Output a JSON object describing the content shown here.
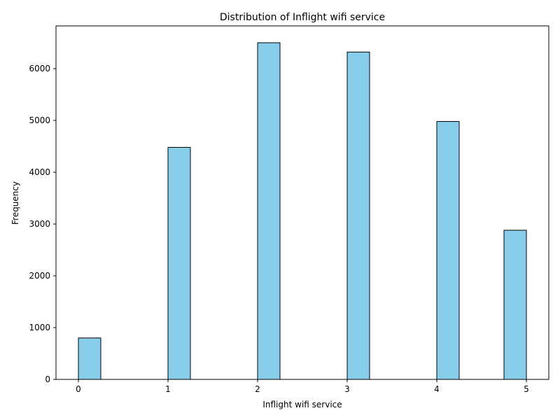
{
  "chart_data": {
    "type": "bar",
    "title": "Distribution of Inflight wifi service",
    "xlabel": "Inflight wifi service",
    "ylabel": "Frequency",
    "bins": [
      {
        "x0": 0.0,
        "x1": 0.25,
        "value": 800
      },
      {
        "x0": 1.0,
        "x1": 1.25,
        "value": 4480
      },
      {
        "x0": 2.0,
        "x1": 2.25,
        "value": 6500
      },
      {
        "x0": 3.0,
        "x1": 3.25,
        "value": 6320
      },
      {
        "x0": 4.0,
        "x1": 4.25,
        "value": 4980
      },
      {
        "x0": 4.75,
        "x1": 5.0,
        "value": 2880
      }
    ],
    "xlim": [
      -0.25,
      5.25
    ],
    "ylim": [
      0,
      6825
    ],
    "xticks": [
      0,
      1,
      2,
      3,
      4,
      5
    ],
    "yticks": [
      0,
      1000,
      2000,
      3000,
      4000,
      5000,
      6000
    ],
    "bar_color": "#87ceeb",
    "edge_color": "#000000",
    "grid": false
  }
}
